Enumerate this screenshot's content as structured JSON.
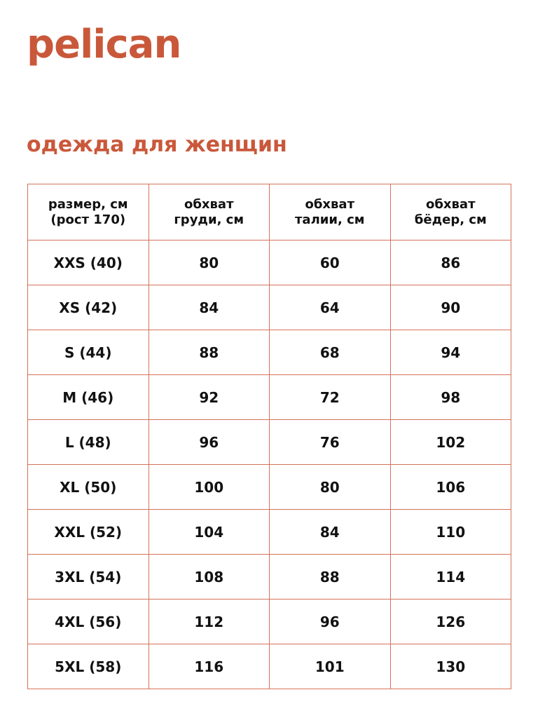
{
  "brand": {
    "logo_text": "pelican",
    "color": "#c9583a"
  },
  "page_title": "одежда для женщин",
  "table": {
    "headers": [
      [
        "размер, см",
        "(рост 170)"
      ],
      [
        "обхват",
        "груди, см"
      ],
      [
        "обхват",
        "талии, см"
      ],
      [
        "обхват",
        "бёдер, см"
      ]
    ],
    "rows": [
      [
        "XXS (40)",
        "80",
        "60",
        "86"
      ],
      [
        "XS (42)",
        "84",
        "64",
        "90"
      ],
      [
        "S (44)",
        "88",
        "68",
        "94"
      ],
      [
        "M (46)",
        "92",
        "72",
        "98"
      ],
      [
        "L (48)",
        "96",
        "76",
        "102"
      ],
      [
        "XL (50)",
        "100",
        "80",
        "106"
      ],
      [
        "XXL (52)",
        "104",
        "84",
        "110"
      ],
      [
        "3XL (54)",
        "108",
        "88",
        "114"
      ],
      [
        "4XL (56)",
        "112",
        "96",
        "126"
      ],
      [
        "5XL (58)",
        "116",
        "101",
        "130"
      ]
    ]
  }
}
